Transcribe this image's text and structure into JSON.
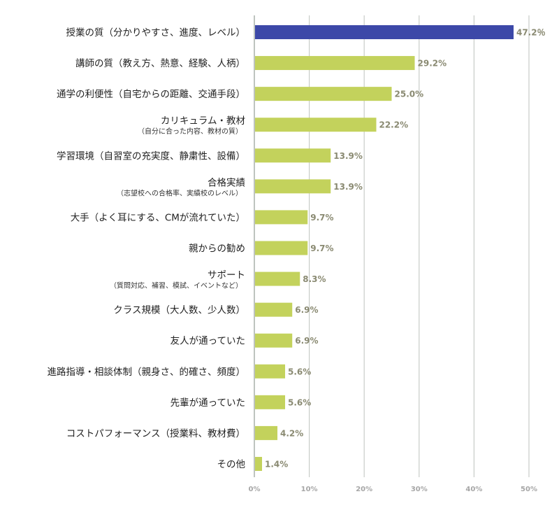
{
  "chart_data": {
    "type": "bar",
    "orientation": "horizontal",
    "categories": [
      {
        "label": "授業の質（分かりやすさ、進度、レベル）",
        "sub": ""
      },
      {
        "label": "講師の質（教え方、熱意、経験、人柄）",
        "sub": ""
      },
      {
        "label": "通学の利便性（自宅からの距離、交通手段）",
        "sub": ""
      },
      {
        "label": "カリキュラム・教材",
        "sub": "（自分に合った内容、教材の質）"
      },
      {
        "label": "学習環境（自習室の充実度、静粛性、設備）",
        "sub": ""
      },
      {
        "label": "合格実績",
        "sub": "（志望校への合格率、実績校のレベル）"
      },
      {
        "label": "大手（よく耳にする、CMが流れていた）",
        "sub": ""
      },
      {
        "label": "親からの勧め",
        "sub": ""
      },
      {
        "label": "サポート",
        "sub": "（質問対応、補習、模試、イベントなど）"
      },
      {
        "label": "クラス規模（大人数、少人数）",
        "sub": ""
      },
      {
        "label": "友人が通っていた",
        "sub": ""
      },
      {
        "label": "進路指導・相談体制（親身さ、的確さ、頻度）",
        "sub": ""
      },
      {
        "label": "先輩が通っていた",
        "sub": ""
      },
      {
        "label": "コストパフォーマンス（授業料、教材費）",
        "sub": ""
      },
      {
        "label": "その他",
        "sub": ""
      }
    ],
    "values": [
      47.2,
      29.2,
      25.0,
      22.2,
      13.9,
      13.9,
      9.7,
      9.7,
      8.3,
      6.9,
      6.9,
      5.6,
      5.6,
      4.2,
      1.4
    ],
    "value_labels": [
      "47.2％",
      "29.2%",
      "25.0%",
      "22.2%",
      "13.9%",
      "13.9%",
      "9.7%",
      "9.7%",
      "8.3%",
      "6.9%",
      "6.9%",
      "5.6%",
      "5.6%",
      "4.2%",
      "1.4%"
    ],
    "xlim": [
      0,
      50
    ],
    "xticks": [
      0,
      10,
      20,
      30,
      40,
      50
    ],
    "xtick_labels": [
      "0%",
      "10%",
      "20%",
      "30%",
      "40%",
      "50%"
    ],
    "grid": true,
    "colors": {
      "highlight": "#3c48a8",
      "bar": "#c3d25c",
      "grid": "#c8ccc8",
      "axis": "#a9b0aa"
    }
  }
}
